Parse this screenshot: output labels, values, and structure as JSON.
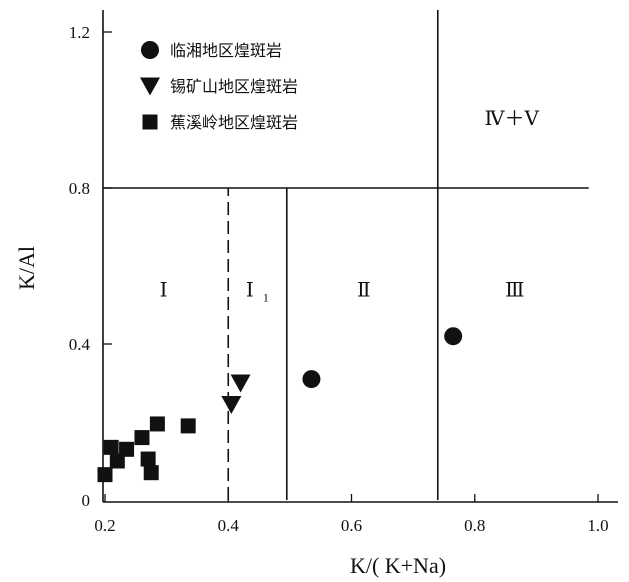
{
  "chart_data": {
    "type": "scatter",
    "title": "",
    "xlabel": "K/( K+Na)",
    "ylabel": "K/Al",
    "xlim": [
      0.2,
      1.02
    ],
    "ylim": [
      0,
      1.26
    ],
    "x_ticks": [
      {
        "value": 0.2,
        "label": "0.2"
      },
      {
        "value": 0.4,
        "label": "0.4"
      },
      {
        "value": 0.6,
        "label": "0.6"
      },
      {
        "value": 0.8,
        "label": "0.8"
      },
      {
        "value": 1.0,
        "label": "1.0"
      }
    ],
    "y_ticks": [
      {
        "value": 0,
        "label": "0"
      },
      {
        "value": 0.4,
        "label": "0.4"
      },
      {
        "value": 0.8,
        "label": "0.8"
      },
      {
        "value": 1.2,
        "label": "1.2"
      }
    ],
    "grid": false,
    "legend_position": "top-left",
    "series": [
      {
        "name": "临湘地区煌斑岩",
        "marker": "circle",
        "points": [
          {
            "x": 0.535,
            "y": 0.31
          },
          {
            "x": 0.765,
            "y": 0.42
          }
        ]
      },
      {
        "name": "锡矿山地区煌斑岩",
        "marker": "triangle-down",
        "points": [
          {
            "x": 0.405,
            "y": 0.245
          },
          {
            "x": 0.42,
            "y": 0.3
          }
        ]
      },
      {
        "name": "蕉溪岭地区煌斑岩",
        "marker": "square",
        "points": [
          {
            "x": 0.2,
            "y": 0.065
          },
          {
            "x": 0.21,
            "y": 0.135
          },
          {
            "x": 0.22,
            "y": 0.1
          },
          {
            "x": 0.235,
            "y": 0.13
          },
          {
            "x": 0.26,
            "y": 0.16
          },
          {
            "x": 0.27,
            "y": 0.105
          },
          {
            "x": 0.275,
            "y": 0.07
          },
          {
            "x": 0.285,
            "y": 0.195
          },
          {
            "x": 0.335,
            "y": 0.19
          }
        ]
      }
    ],
    "boundaries": [
      {
        "kind": "horizontal",
        "y": 0.8,
        "x_from": 0.2,
        "x_to": 0.985,
        "style": "solid"
      },
      {
        "kind": "vertical",
        "x": 0.4,
        "y_from": 0,
        "y_to": 0.8,
        "style": "dashed"
      },
      {
        "kind": "vertical",
        "x": 0.495,
        "y_from": 0,
        "y_to": 0.8,
        "style": "solid"
      },
      {
        "kind": "vertical",
        "x": 0.74,
        "y_from": 0,
        "y_to": 1.26,
        "style": "solid"
      }
    ],
    "regions": [
      {
        "label": "Ⅰ",
        "sub": "",
        "x": 0.295,
        "y": 0.54
      },
      {
        "label": "Ⅰ",
        "sub": "1",
        "x": 0.435,
        "y": 0.54
      },
      {
        "label": "Ⅱ",
        "sub": "",
        "x": 0.62,
        "y": 0.54
      },
      {
        "label": "Ⅲ",
        "sub": "",
        "x": 0.865,
        "y": 0.54
      },
      {
        "label": "Ⅳ＋Ⅴ",
        "sub": "",
        "x": 0.86,
        "y": 0.98
      }
    ],
    "colors": {
      "ink": "#111111",
      "background": "#ffffff"
    }
  }
}
